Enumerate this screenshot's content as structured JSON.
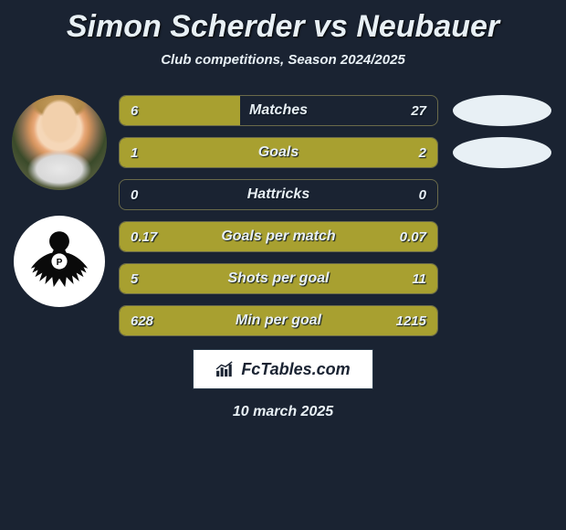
{
  "title": "Simon Scherder vs Neubauer",
  "subtitle": "Club competitions, Season 2024/2025",
  "brand": "FcTables.com",
  "date": "10 march 2025",
  "colors": {
    "background": "#1a2332",
    "bar_fill": "#a8a030",
    "bar_border": "#6a6a4a",
    "text": "#e8f0f5"
  },
  "stats": [
    {
      "label": "Matches",
      "left_val": "6",
      "right_val": "27",
      "left_pct": 38,
      "right_pct": 0
    },
    {
      "label": "Goals",
      "left_val": "1",
      "right_val": "2",
      "left_pct": 100,
      "right_pct": 0
    },
    {
      "label": "Hattricks",
      "left_val": "0",
      "right_val": "0",
      "left_pct": 0,
      "right_pct": 0
    },
    {
      "label": "Goals per match",
      "left_val": "0.17",
      "right_val": "0.07",
      "left_pct": 100,
      "right_pct": 0
    },
    {
      "label": "Shots per goal",
      "left_val": "5",
      "right_val": "11",
      "left_pct": 100,
      "right_pct": 0
    },
    {
      "label": "Min per goal",
      "left_val": "628",
      "right_val": "1215",
      "left_pct": 100,
      "right_pct": 0
    }
  ]
}
